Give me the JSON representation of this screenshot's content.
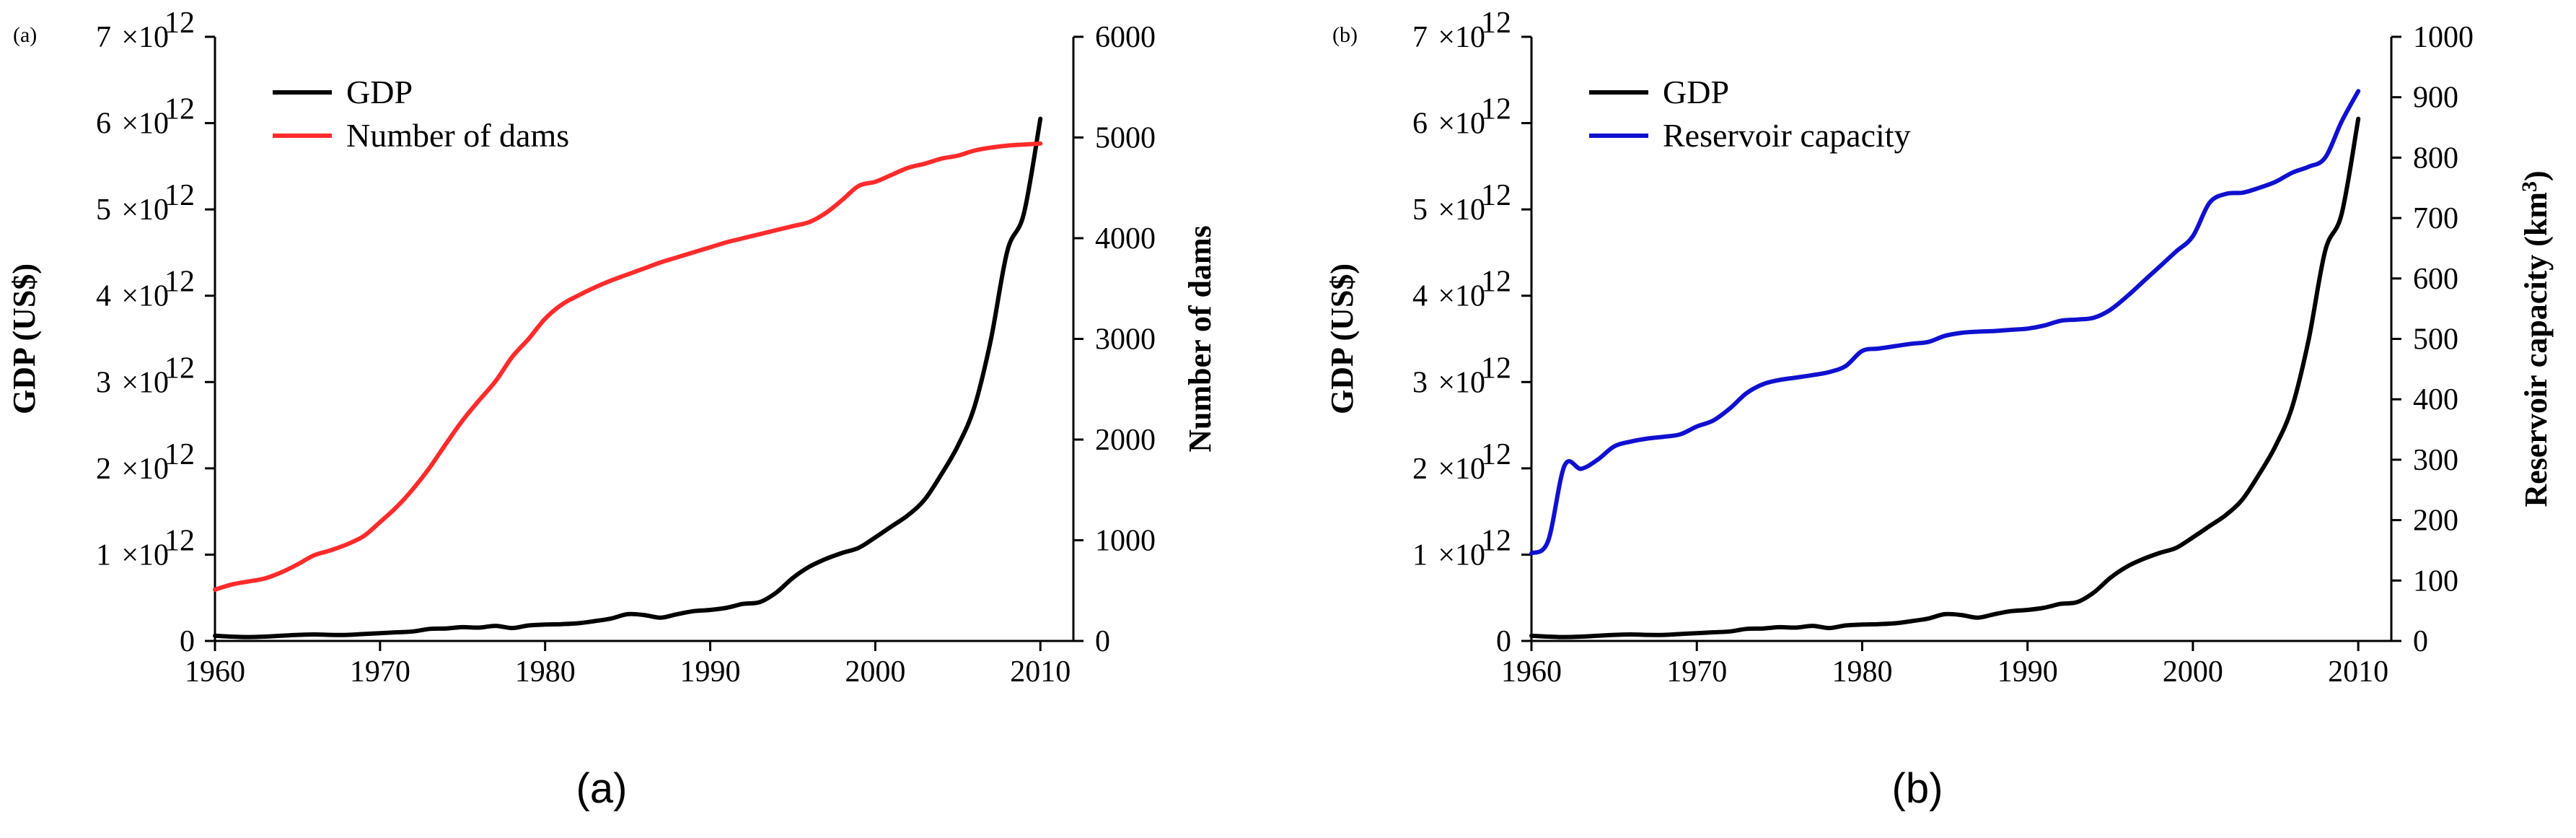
{
  "chart_data": [
    {
      "type": "line",
      "panel_label": "(a)",
      "caption": "(a)",
      "xlabel": "",
      "ylabel": "GDP (US$)",
      "y2label": "Number of dams",
      "xlim": [
        1960,
        2012
      ],
      "ylim": [
        0,
        7000000000000.0
      ],
      "y2lim": [
        0,
        6000
      ],
      "x_ticks": [
        "1960",
        "1970",
        "1980",
        "1990",
        "2000",
        "2010"
      ],
      "y_tick_coeffs": [
        "0",
        "1",
        "2",
        "3",
        "4",
        "5",
        "6",
        "7"
      ],
      "y_tick_times": "×10",
      "y_tick_exp": "12",
      "y2_ticks": [
        "0",
        "1000",
        "2000",
        "3000",
        "4000",
        "5000",
        "6000"
      ],
      "legend": [
        "GDP",
        "Number of dams"
      ],
      "series": [
        {
          "name": "GDP",
          "axis": "left",
          "color": "#000000",
          "x": [
            1960,
            1961,
            1962,
            1963,
            1964,
            1965,
            1966,
            1967,
            1968,
            1969,
            1970,
            1971,
            1972,
            1973,
            1974,
            1975,
            1976,
            1977,
            1978,
            1979,
            1980,
            1981,
            1982,
            1983,
            1984,
            1985,
            1986,
            1987,
            1988,
            1989,
            1990,
            1991,
            1992,
            1993,
            1994,
            1995,
            1996,
            1997,
            1998,
            1999,
            2000,
            2001,
            2002,
            2003,
            2004,
            2005,
            2006,
            2007,
            2008,
            2009,
            2010
          ],
          "values": [
            60000000000.0,
            50000000000.0,
            45000000000.0,
            50000000000.0,
            60000000000.0,
            70000000000.0,
            75000000000.0,
            70000000000.0,
            70000000000.0,
            80000000000.0,
            90000000000.0,
            100000000000.0,
            110000000000.0,
            140000000000.0,
            145000000000.0,
            160000000000.0,
            155000000000.0,
            175000000000.0,
            150000000000.0,
            180000000000.0,
            190000000000.0,
            195000000000.0,
            205000000000.0,
            230000000000.0,
            260000000000.0,
            310000000000.0,
            300000000000.0,
            270000000000.0,
            310000000000.0,
            345000000000.0,
            360000000000.0,
            385000000000.0,
            430000000000.0,
            450000000000.0,
            560000000000.0,
            730000000000.0,
            860000000000.0,
            950000000000.0,
            1020000000000.0,
            1080000000000.0,
            1200000000000.0,
            1330000000000.0,
            1460000000000.0,
            1640000000000.0,
            1930000000000.0,
            2260000000000.0,
            2710000000000.0,
            3490000000000.0,
            4520000000000.0,
            4950000000000.0,
            6050000000000.0
          ]
        },
        {
          "name": "Number of dams",
          "axis": "right",
          "color": "#ff2b2b",
          "x": [
            1960,
            1961,
            1962,
            1963,
            1964,
            1965,
            1966,
            1967,
            1968,
            1969,
            1970,
            1971,
            1972,
            1973,
            1974,
            1975,
            1976,
            1977,
            1978,
            1979,
            1980,
            1981,
            1982,
            1983,
            1984,
            1985,
            1986,
            1987,
            1988,
            1989,
            1990,
            1991,
            1992,
            1993,
            1994,
            1995,
            1996,
            1997,
            1998,
            1999,
            2000,
            2001,
            2002,
            2003,
            2004,
            2005,
            2006,
            2007,
            2008,
            2009,
            2010
          ],
          "values": [
            510,
            560,
            590,
            620,
            680,
            760,
            850,
            900,
            960,
            1040,
            1180,
            1330,
            1510,
            1720,
            1960,
            2190,
            2390,
            2580,
            2820,
            3000,
            3200,
            3340,
            3430,
            3510,
            3580,
            3640,
            3700,
            3760,
            3810,
            3860,
            3910,
            3960,
            4000,
            4040,
            4080,
            4120,
            4160,
            4250,
            4380,
            4520,
            4560,
            4630,
            4700,
            4740,
            4790,
            4820,
            4870,
            4900,
            4920,
            4930,
            4940
          ]
        }
      ]
    },
    {
      "type": "line",
      "panel_label": "(b)",
      "caption": "(b)",
      "xlabel": "",
      "ylabel": "GDP (US$)",
      "y2label": "Reservoir capacity (km",
      "y2label_sup": "3",
      "y2label_end": ")",
      "xlim": [
        1960,
        2012
      ],
      "ylim": [
        0,
        7000000000000.0
      ],
      "y2lim": [
        0,
        1000
      ],
      "x_ticks": [
        "1960",
        "1970",
        "1980",
        "1990",
        "2000",
        "2010"
      ],
      "y_tick_coeffs": [
        "0",
        "1",
        "2",
        "3",
        "4",
        "5",
        "6",
        "7"
      ],
      "y_tick_times": "×10",
      "y_tick_exp": "12",
      "y2_ticks": [
        "0",
        "100",
        "200",
        "300",
        "400",
        "500",
        "600",
        "700",
        "800",
        "900",
        "1000"
      ],
      "legend": [
        "GDP",
        "Reservoir capacity"
      ],
      "series": [
        {
          "name": "GDP",
          "axis": "left",
          "color": "#000000",
          "x": [
            1960,
            1961,
            1962,
            1963,
            1964,
            1965,
            1966,
            1967,
            1968,
            1969,
            1970,
            1971,
            1972,
            1973,
            1974,
            1975,
            1976,
            1977,
            1978,
            1979,
            1980,
            1981,
            1982,
            1983,
            1984,
            1985,
            1986,
            1987,
            1988,
            1989,
            1990,
            1991,
            1992,
            1993,
            1994,
            1995,
            1996,
            1997,
            1998,
            1999,
            2000,
            2001,
            2002,
            2003,
            2004,
            2005,
            2006,
            2007,
            2008,
            2009,
            2010
          ],
          "values": [
            60000000000.0,
            50000000000.0,
            45000000000.0,
            50000000000.0,
            60000000000.0,
            70000000000.0,
            75000000000.0,
            70000000000.0,
            70000000000.0,
            80000000000.0,
            90000000000.0,
            100000000000.0,
            110000000000.0,
            140000000000.0,
            145000000000.0,
            160000000000.0,
            155000000000.0,
            175000000000.0,
            150000000000.0,
            180000000000.0,
            190000000000.0,
            195000000000.0,
            205000000000.0,
            230000000000.0,
            260000000000.0,
            310000000000.0,
            300000000000.0,
            270000000000.0,
            310000000000.0,
            345000000000.0,
            360000000000.0,
            385000000000.0,
            430000000000.0,
            450000000000.0,
            560000000000.0,
            730000000000.0,
            860000000000.0,
            950000000000.0,
            1020000000000.0,
            1080000000000.0,
            1200000000000.0,
            1330000000000.0,
            1460000000000.0,
            1640000000000.0,
            1930000000000.0,
            2260000000000.0,
            2710000000000.0,
            3490000000000.0,
            4520000000000.0,
            4950000000000.0,
            6050000000000.0
          ]
        },
        {
          "name": "Reservoir capacity",
          "axis": "right",
          "color": "#1010d0",
          "x": [
            1960,
            1961,
            1962,
            1963,
            1964,
            1965,
            1966,
            1967,
            1968,
            1969,
            1970,
            1971,
            1972,
            1973,
            1974,
            1975,
            1976,
            1977,
            1978,
            1979,
            1980,
            1981,
            1982,
            1983,
            1984,
            1985,
            1986,
            1987,
            1988,
            1989,
            1990,
            1991,
            1992,
            1993,
            1994,
            1995,
            1996,
            1997,
            1998,
            1999,
            2000,
            2001,
            2002,
            2003,
            2004,
            2005,
            2006,
            2007,
            2008,
            2009,
            2010
          ],
          "values": [
            145,
            165,
            290,
            285,
            300,
            322,
            330,
            335,
            338,
            342,
            355,
            365,
            385,
            410,
            425,
            432,
            436,
            440,
            445,
            455,
            480,
            484,
            488,
            492,
            495,
            505,
            510,
            512,
            513,
            515,
            517,
            522,
            530,
            532,
            535,
            548,
            570,
            595,
            620,
            645,
            670,
            725,
            740,
            742,
            750,
            760,
            775,
            785,
            800,
            860,
            910
          ]
        }
      ]
    }
  ]
}
